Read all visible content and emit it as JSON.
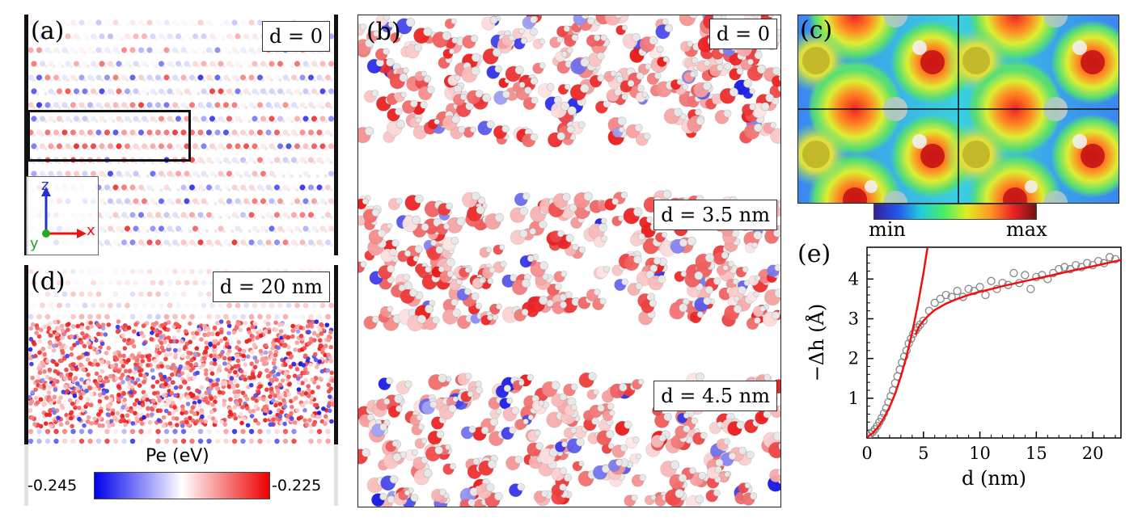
{
  "panels": {
    "a": {
      "label": "(a)",
      "distance": "d = 0",
      "axes": {
        "z": "z",
        "x": "x",
        "y": "y"
      }
    },
    "b": {
      "label": "(b)",
      "distances": [
        "d = 0",
        "d = 3.5 nm",
        "d = 4.5 nm"
      ]
    },
    "c": {
      "label": "(c)",
      "colorbar": {
        "min": "min",
        "max": "max"
      }
    },
    "d": {
      "label": "(d)",
      "distance": "d = 20 nm",
      "colorbar": {
        "title": "Pe (eV)",
        "min": "-0.245",
        "max": "-0.225",
        "colors": [
          "#0000ee",
          "#ffffff",
          "#ee0000"
        ]
      }
    },
    "e": {
      "label": "(e)"
    }
  },
  "chart_data": {
    "type": "scatter",
    "title": "",
    "xlabel": "d (nm)",
    "ylabel": "−Δh (Å)",
    "xlim": [
      0,
      22.5
    ],
    "ylim": [
      0,
      4.8
    ],
    "xticks": [
      0,
      5,
      10,
      15,
      20
    ],
    "yticks": [
      1,
      2,
      3,
      4
    ],
    "grid": false,
    "series": [
      {
        "kind": "points",
        "color": "#888888",
        "x": [
          0.1,
          0.3,
          0.5,
          0.7,
          0.9,
          1.1,
          1.3,
          1.5,
          1.7,
          1.9,
          2.1,
          2.3,
          2.5,
          2.7,
          2.9,
          3.1,
          3.3,
          3.5,
          3.7,
          3.9,
          4.1,
          4.3,
          4.5,
          4.7,
          5.0,
          5.5,
          6.0,
          6.5,
          7.0,
          7.5,
          8.0,
          8.5,
          9.0,
          9.5,
          10.0,
          10.5,
          11.0,
          11.5,
          12.0,
          12.5,
          13.0,
          13.5,
          14.0,
          14.5,
          15.0,
          15.5,
          16.0,
          16.5,
          17.0,
          17.5,
          18.0,
          18.5,
          19.0,
          19.5,
          20.0,
          20.5,
          21.0,
          21.5,
          22.0
        ],
        "y": [
          0.05,
          0.1,
          0.15,
          0.22,
          0.3,
          0.4,
          0.5,
          0.62,
          0.75,
          0.9,
          1.05,
          1.2,
          1.38,
          1.55,
          1.72,
          1.9,
          2.05,
          2.2,
          2.38,
          2.5,
          2.62,
          2.7,
          2.78,
          2.85,
          2.95,
          3.2,
          3.4,
          3.5,
          3.6,
          3.55,
          3.7,
          3.55,
          3.75,
          3.7,
          3.8,
          3.6,
          3.95,
          3.75,
          3.9,
          3.85,
          4.15,
          3.9,
          4.1,
          3.75,
          4.05,
          4.1,
          4.0,
          4.15,
          4.25,
          4.3,
          4.25,
          4.35,
          4.3,
          4.4,
          4.35,
          4.45,
          4.4,
          4.55,
          4.5
        ]
      },
      {
        "kind": "fit",
        "color": "#ee1111",
        "x": [
          0,
          0.5,
          1,
          1.5,
          2,
          2.5,
          3,
          3.5,
          4,
          4.5,
          5,
          5.5
        ],
        "y": [
          0.02,
          0.12,
          0.28,
          0.5,
          0.78,
          1.12,
          1.55,
          2.05,
          2.65,
          3.35,
          4.15,
          5.05
        ]
      },
      {
        "kind": "fit",
        "color": "#ee1111",
        "x": [
          4.3,
          4.6,
          5,
          5.5,
          6,
          7,
          8,
          9,
          10,
          12,
          14,
          16,
          18,
          20,
          22.5
        ],
        "y": [
          2.6,
          2.8,
          2.95,
          3.1,
          3.22,
          3.38,
          3.5,
          3.6,
          3.68,
          3.82,
          3.95,
          4.07,
          4.2,
          4.32,
          4.48
        ]
      }
    ]
  }
}
